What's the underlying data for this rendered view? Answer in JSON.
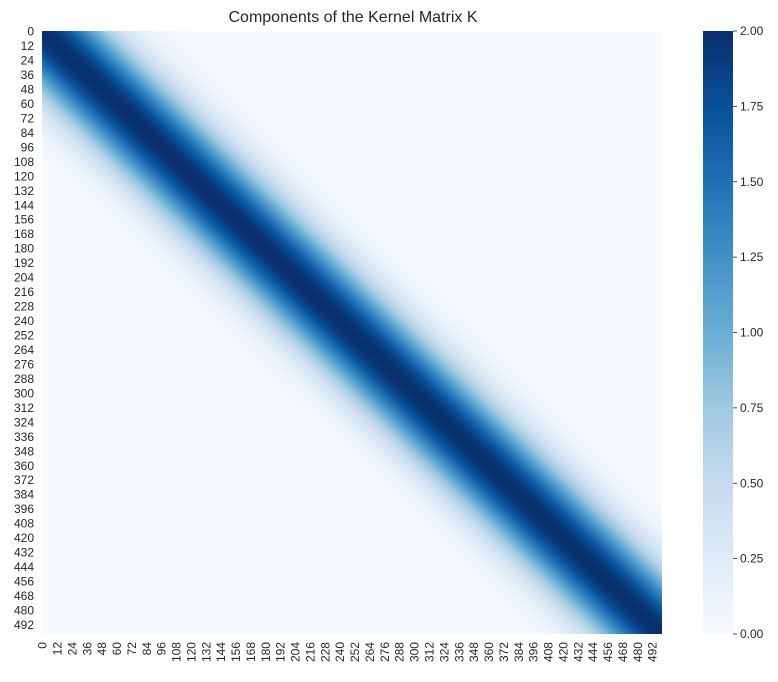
{
  "chart_data": {
    "type": "heatmap",
    "title": "Components of the Kernel Matrix K",
    "xlabel": "",
    "ylabel": "",
    "matrix_size": 500,
    "index_range": [
      0,
      499
    ],
    "description": "Banded kernel matrix; value peaks at 2.00 on the main diagonal and decays smoothly with |i - j|, near 0 for |i - j| greater than about 110",
    "kernel": {
      "diagonal_value": 2.0,
      "far_value": 0.0,
      "band_half_width_at_value_1": 42
    },
    "x_tick_labels": [
      "0",
      "12",
      "24",
      "36",
      "48",
      "60",
      "72",
      "84",
      "96",
      "108",
      "120",
      "132",
      "144",
      "156",
      "168",
      "180",
      "192",
      "204",
      "216",
      "228",
      "240",
      "252",
      "264",
      "276",
      "288",
      "300",
      "312",
      "324",
      "336",
      "348",
      "360",
      "372",
      "384",
      "396",
      "408",
      "420",
      "432",
      "444",
      "456",
      "468",
      "480",
      "492"
    ],
    "y_tick_labels": [
      "0",
      "12",
      "24",
      "36",
      "48",
      "60",
      "72",
      "84",
      "96",
      "108",
      "120",
      "132",
      "144",
      "156",
      "168",
      "180",
      "192",
      "204",
      "216",
      "228",
      "240",
      "252",
      "264",
      "276",
      "288",
      "300",
      "312",
      "324",
      "336",
      "348",
      "360",
      "372",
      "384",
      "396",
      "408",
      "420",
      "432",
      "444",
      "456",
      "468",
      "480",
      "492"
    ],
    "colorbar": {
      "min": 0.0,
      "max": 2.0,
      "colormap": "Blues",
      "tick_values": [
        0.0,
        0.25,
        0.5,
        0.75,
        1.0,
        1.25,
        1.5,
        1.75,
        2.0
      ],
      "tick_labels": [
        "0.00",
        "0.25",
        "0.50",
        "0.75",
        "1.00",
        "1.25",
        "1.50",
        "1.75",
        "2.00"
      ]
    },
    "grid": false,
    "legend": "colorbar-right"
  }
}
